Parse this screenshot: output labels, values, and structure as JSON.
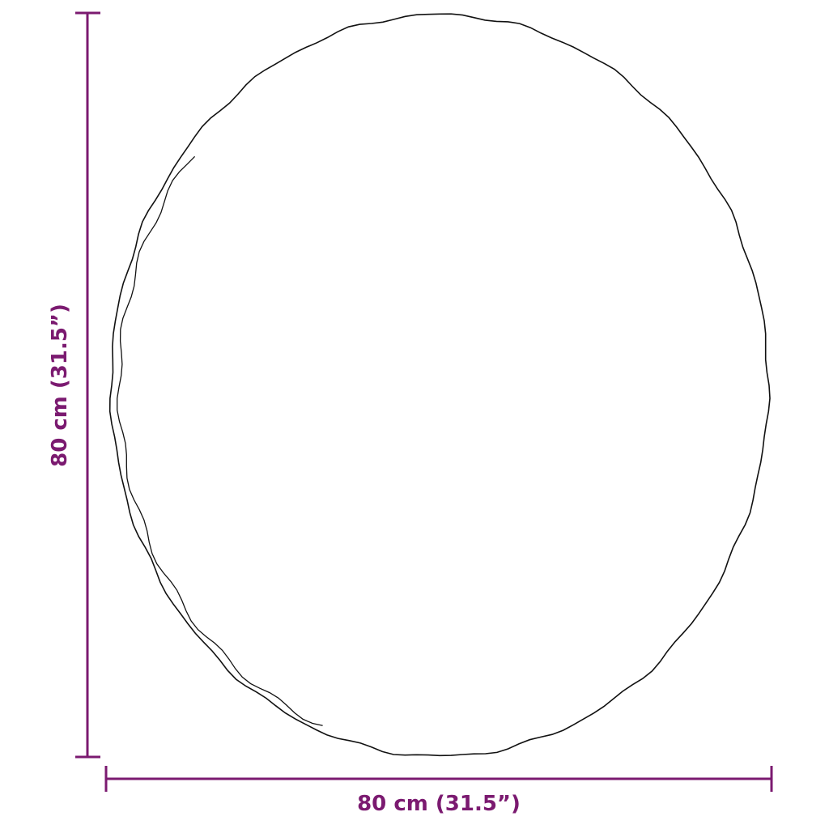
{
  "dimensions": {
    "width_label": "80 cm (31.5”)",
    "height_label": "80 cm (31.5”)"
  },
  "colors": {
    "dimension_line": "#7b1a70",
    "outline": "#111111"
  },
  "product": "round-mirror-outline"
}
